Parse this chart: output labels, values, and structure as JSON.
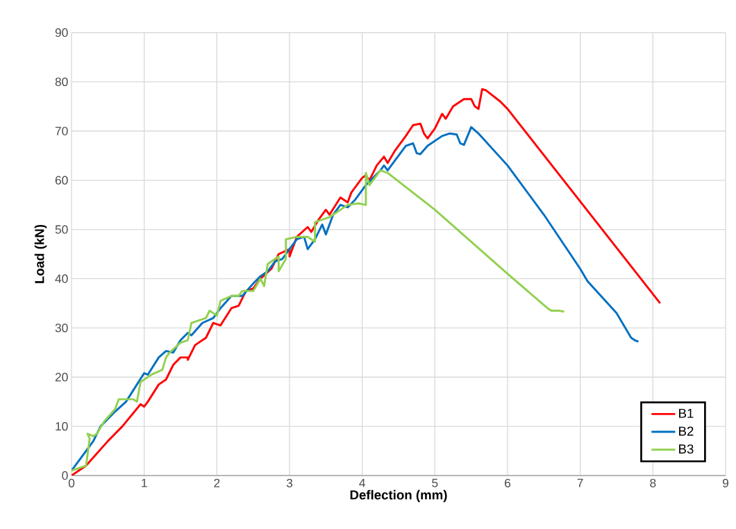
{
  "chart_data": {
    "type": "line",
    "xlabel": "Deflection (mm)",
    "ylabel": "Load (kN)",
    "xlim": [
      0,
      9
    ],
    "ylim": [
      0,
      90
    ],
    "xticks": [
      0,
      1,
      2,
      3,
      4,
      5,
      6,
      7,
      8,
      9
    ],
    "yticks": [
      0,
      10,
      20,
      30,
      40,
      50,
      60,
      70,
      80,
      90
    ],
    "grid": true,
    "legend": "bottom right",
    "marker": "none",
    "line_style": "solid",
    "series": [
      {
        "name": "B1",
        "color": "#ff0000",
        "x": [
          0,
          0.2,
          0.5,
          0.7,
          0.95,
          1.0,
          1.05,
          1.2,
          1.3,
          1.4,
          1.5,
          1.6,
          1.6,
          1.7,
          1.8,
          1.85,
          1.95,
          2.05,
          2.2,
          2.3,
          2.4,
          2.5,
          2.6,
          2.75,
          2.85,
          3.0,
          3.0,
          3.1,
          3.25,
          3.3,
          3.4,
          3.5,
          3.55,
          3.7,
          3.8,
          3.85,
          4.0,
          4.05,
          4.1,
          4.2,
          4.3,
          4.35,
          4.45,
          4.6,
          4.7,
          4.8,
          4.85,
          4.9,
          5.0,
          5.1,
          5.15,
          5.25,
          5.4,
          5.5,
          5.55,
          5.6,
          5.65,
          5.7,
          5.9,
          6.0,
          8.1
        ],
        "values": [
          0,
          2,
          7,
          10,
          14.5,
          14,
          15,
          18.5,
          19.5,
          22.5,
          24,
          24,
          23.5,
          26.5,
          27.5,
          28,
          31,
          30.5,
          34,
          34.5,
          37.5,
          38,
          40,
          42,
          45,
          46,
          44.5,
          48.5,
          50.5,
          49.5,
          52,
          54,
          53,
          56.5,
          55.5,
          57.5,
          60.5,
          61,
          60,
          63,
          64.8,
          63.5,
          66,
          69,
          71.2,
          71.5,
          69.5,
          68.5,
          70.5,
          73.5,
          72.5,
          75,
          76.5,
          76.5,
          75,
          74.5,
          78.5,
          78.3,
          76,
          74.5,
          35
        ]
      },
      {
        "name": "B2",
        "color": "#0070c0",
        "x": [
          0,
          0.2,
          0.3,
          0.4,
          0.6,
          0.75,
          0.9,
          1.0,
          1.05,
          1.2,
          1.3,
          1.4,
          1.5,
          1.6,
          1.65,
          1.8,
          1.95,
          2.05,
          2.2,
          2.35,
          2.5,
          2.6,
          2.7,
          2.8,
          2.9,
          3.0,
          3.1,
          3.2,
          3.25,
          3.35,
          3.45,
          3.5,
          3.6,
          3.7,
          3.8,
          3.9,
          4.0,
          4.05,
          4.15,
          4.25,
          4.3,
          4.35,
          4.45,
          4.6,
          4.7,
          4.75,
          4.8,
          4.9,
          5.1,
          5.2,
          5.3,
          5.35,
          5.4,
          5.5,
          5.6,
          6.0,
          6.5,
          7.0,
          7.1,
          7.5,
          7.7,
          7.75,
          7.8
        ],
        "values": [
          1,
          5,
          7,
          10,
          13,
          15,
          18.5,
          20.8,
          20.5,
          24,
          25.3,
          25,
          27.5,
          29,
          28.5,
          31,
          32,
          34,
          36.5,
          36.5,
          39,
          40.5,
          41.5,
          43.5,
          44,
          46,
          48,
          48.5,
          46,
          48,
          51,
          49,
          53,
          55,
          54.5,
          56,
          58,
          59,
          60.5,
          62,
          63,
          62,
          64,
          67,
          67.5,
          65.5,
          65.3,
          67,
          69,
          69.5,
          69.3,
          67.5,
          67.2,
          70.8,
          69.5,
          63,
          53,
          42,
          39.5,
          33,
          28,
          27.5,
          27.2
        ]
      },
      {
        "name": "B3",
        "color": "#92d050",
        "x": [
          0,
          0.2,
          0.25,
          0.22,
          0.3,
          0.35,
          0.45,
          0.6,
          0.65,
          0.85,
          0.9,
          0.95,
          1.1,
          1.25,
          1.3,
          1.35,
          1.5,
          1.6,
          1.65,
          1.85,
          1.9,
          2.0,
          2.05,
          2.2,
          2.3,
          2.35,
          2.5,
          2.6,
          2.65,
          2.7,
          2.85,
          2.85,
          2.95,
          2.95,
          3.1,
          3.25,
          3.35,
          3.35,
          3.55,
          3.7,
          3.8,
          3.95,
          4.05,
          4.05,
          4.1,
          4.25,
          4.35,
          5.0,
          6.0,
          6.55,
          6.6,
          6.7,
          6.78
        ],
        "values": [
          1,
          2,
          7.5,
          8.5,
          8,
          8.5,
          11,
          13.5,
          15.5,
          15.5,
          15,
          19,
          20.5,
          21.5,
          24,
          25,
          27,
          27.5,
          31,
          32,
          33.5,
          32.5,
          35.5,
          36.5,
          36.5,
          37.5,
          37.5,
          40,
          38.5,
          43,
          44.5,
          41.5,
          44,
          48,
          48.5,
          48.5,
          47.5,
          51.5,
          52.5,
          54,
          55,
          55.3,
          55,
          61.5,
          59,
          62,
          61.5,
          54,
          41,
          34,
          33.5,
          33.5,
          33.3
        ]
      }
    ]
  }
}
